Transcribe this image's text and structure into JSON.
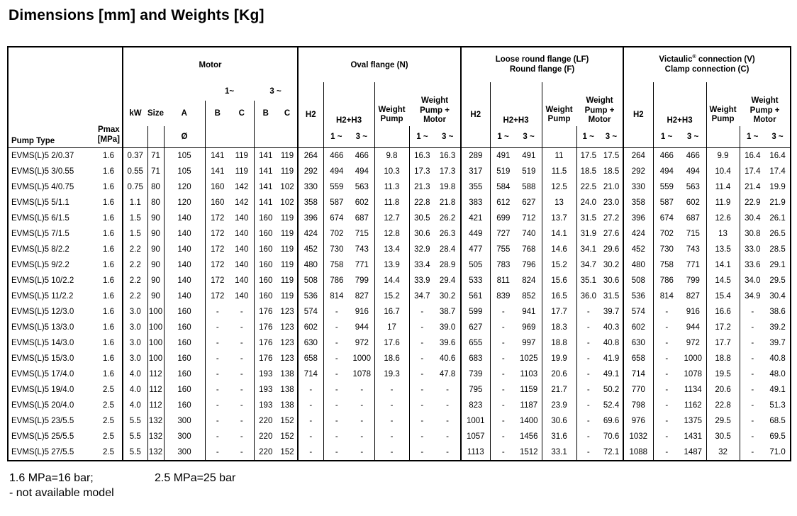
{
  "title": "Dimensions [mm] and Weights [Kg]",
  "table": {
    "header": {
      "pump_type": "Pump Type",
      "pmax_line1": "Pmax",
      "pmax_line2": "[MPa]",
      "motor": {
        "title": "Motor",
        "one": "1~",
        "three": "3 ~",
        "kw": "kW",
        "size": "Size",
        "a": "A",
        "b": "B",
        "c": "C",
        "diameter": "Ø"
      },
      "oval": {
        "title": "Oval flange (N)"
      },
      "lf": {
        "title1": "Loose round flange (LF)",
        "title2": "Round flange (F)"
      },
      "vc": {
        "brand": "Victaulic",
        "reg": "®",
        "rest": " connection (V)",
        "title2": "Clamp connection (C)"
      },
      "flange": {
        "h2": "H2",
        "h2h3": "H2+H3",
        "wp": "Weight\nPump",
        "wpm": "Weight\nPump +\nMotor",
        "one": "1 ~",
        "three": "3 ~"
      }
    },
    "rows": [
      {
        "pump": "EVMS(L)5 2/0.37",
        "pmax": "1.6",
        "motor": [
          "0.37",
          "71",
          "105",
          "141",
          "119",
          "141",
          "119"
        ],
        "oval": [
          "264",
          "466",
          "466",
          "9.8",
          "16.3",
          "16.3"
        ],
        "lf": [
          "289",
          "491",
          "491",
          "11",
          "17.5",
          "17.5"
        ],
        "vc": [
          "264",
          "466",
          "466",
          "9.9",
          "16.4",
          "16.4"
        ]
      },
      {
        "pump": "EVMS(L)5 3/0.55",
        "pmax": "1.6",
        "motor": [
          "0.55",
          "71",
          "105",
          "141",
          "119",
          "141",
          "119"
        ],
        "oval": [
          "292",
          "494",
          "494",
          "10.3",
          "17.3",
          "17.3"
        ],
        "lf": [
          "317",
          "519",
          "519",
          "11.5",
          "18.5",
          "18.5"
        ],
        "vc": [
          "292",
          "494",
          "494",
          "10.4",
          "17.4",
          "17.4"
        ]
      },
      {
        "pump": "EVMS(L)5 4/0.75",
        "pmax": "1.6",
        "motor": [
          "0.75",
          "80",
          "120",
          "160",
          "142",
          "141",
          "102"
        ],
        "oval": [
          "330",
          "559",
          "563",
          "11.3",
          "21.3",
          "19.8"
        ],
        "lf": [
          "355",
          "584",
          "588",
          "12.5",
          "22.5",
          "21.0"
        ],
        "vc": [
          "330",
          "559",
          "563",
          "11.4",
          "21.4",
          "19.9"
        ]
      },
      {
        "pump": "EVMS(L)5 5/1.1",
        "pmax": "1.6",
        "motor": [
          "1.1",
          "80",
          "120",
          "160",
          "142",
          "141",
          "102"
        ],
        "oval": [
          "358",
          "587",
          "602",
          "11.8",
          "22.8",
          "21.8"
        ],
        "lf": [
          "383",
          "612",
          "627",
          "13",
          "24.0",
          "23.0"
        ],
        "vc": [
          "358",
          "587",
          "602",
          "11.9",
          "22.9",
          "21.9"
        ]
      },
      {
        "pump": "EVMS(L)5 6/1.5",
        "pmax": "1.6",
        "motor": [
          "1.5",
          "90",
          "140",
          "172",
          "140",
          "160",
          "119"
        ],
        "oval": [
          "396",
          "674",
          "687",
          "12.7",
          "30.5",
          "26.2"
        ],
        "lf": [
          "421",
          "699",
          "712",
          "13.7",
          "31.5",
          "27.2"
        ],
        "vc": [
          "396",
          "674",
          "687",
          "12.6",
          "30.4",
          "26.1"
        ]
      },
      {
        "pump": "EVMS(L)5 7/1.5",
        "pmax": "1.6",
        "motor": [
          "1.5",
          "90",
          "140",
          "172",
          "140",
          "160",
          "119"
        ],
        "oval": [
          "424",
          "702",
          "715",
          "12.8",
          "30.6",
          "26.3"
        ],
        "lf": [
          "449",
          "727",
          "740",
          "14.1",
          "31.9",
          "27.6"
        ],
        "vc": [
          "424",
          "702",
          "715",
          "13",
          "30.8",
          "26.5"
        ]
      },
      {
        "pump": "EVMS(L)5 8/2.2",
        "pmax": "1.6",
        "motor": [
          "2.2",
          "90",
          "140",
          "172",
          "140",
          "160",
          "119"
        ],
        "oval": [
          "452",
          "730",
          "743",
          "13.4",
          "32.9",
          "28.4"
        ],
        "lf": [
          "477",
          "755",
          "768",
          "14.6",
          "34.1",
          "29.6"
        ],
        "vc": [
          "452",
          "730",
          "743",
          "13.5",
          "33.0",
          "28.5"
        ]
      },
      {
        "pump": "EVMS(L)5 9/2.2",
        "pmax": "1.6",
        "motor": [
          "2.2",
          "90",
          "140",
          "172",
          "140",
          "160",
          "119"
        ],
        "oval": [
          "480",
          "758",
          "771",
          "13.9",
          "33.4",
          "28.9"
        ],
        "lf": [
          "505",
          "783",
          "796",
          "15.2",
          "34.7",
          "30.2"
        ],
        "vc": [
          "480",
          "758",
          "771",
          "14.1",
          "33.6",
          "29.1"
        ]
      },
      {
        "pump": "EVMS(L)5 10/2.2",
        "pmax": "1.6",
        "motor": [
          "2.2",
          "90",
          "140",
          "172",
          "140",
          "160",
          "119"
        ],
        "oval": [
          "508",
          "786",
          "799",
          "14.4",
          "33.9",
          "29.4"
        ],
        "lf": [
          "533",
          "811",
          "824",
          "15.6",
          "35.1",
          "30.6"
        ],
        "vc": [
          "508",
          "786",
          "799",
          "14.5",
          "34.0",
          "29.5"
        ]
      },
      {
        "pump": "EVMS(L)5 11/2.2",
        "pmax": "1.6",
        "motor": [
          "2.2",
          "90",
          "140",
          "172",
          "140",
          "160",
          "119"
        ],
        "oval": [
          "536",
          "814",
          "827",
          "15.2",
          "34.7",
          "30.2"
        ],
        "lf": [
          "561",
          "839",
          "852",
          "16.5",
          "36.0",
          "31.5"
        ],
        "vc": [
          "536",
          "814",
          "827",
          "15.4",
          "34.9",
          "30.4"
        ]
      },
      {
        "pump": "EVMS(L)5 12/3.0",
        "pmax": "1.6",
        "motor": [
          "3.0",
          "100",
          "160",
          "-",
          "-",
          "176",
          "123"
        ],
        "oval": [
          "574",
          "-",
          "916",
          "16.7",
          "-",
          "38.7"
        ],
        "lf": [
          "599",
          "-",
          "941",
          "17.7",
          "-",
          "39.7"
        ],
        "vc": [
          "574",
          "-",
          "916",
          "16.6",
          "-",
          "38.6"
        ]
      },
      {
        "pump": "EVMS(L)5 13/3.0",
        "pmax": "1.6",
        "motor": [
          "3.0",
          "100",
          "160",
          "-",
          "-",
          "176",
          "123"
        ],
        "oval": [
          "602",
          "-",
          "944",
          "17",
          "-",
          "39.0"
        ],
        "lf": [
          "627",
          "-",
          "969",
          "18.3",
          "-",
          "40.3"
        ],
        "vc": [
          "602",
          "-",
          "944",
          "17.2",
          "-",
          "39.2"
        ]
      },
      {
        "pump": "EVMS(L)5 14/3.0",
        "pmax": "1.6",
        "motor": [
          "3.0",
          "100",
          "160",
          "-",
          "-",
          "176",
          "123"
        ],
        "oval": [
          "630",
          "-",
          "972",
          "17.6",
          "-",
          "39.6"
        ],
        "lf": [
          "655",
          "-",
          "997",
          "18.8",
          "-",
          "40.8"
        ],
        "vc": [
          "630",
          "-",
          "972",
          "17.7",
          "-",
          "39.7"
        ]
      },
      {
        "pump": "EVMS(L)5 15/3.0",
        "pmax": "1.6",
        "motor": [
          "3.0",
          "100",
          "160",
          "-",
          "-",
          "176",
          "123"
        ],
        "oval": [
          "658",
          "-",
          "1000",
          "18.6",
          "-",
          "40.6"
        ],
        "lf": [
          "683",
          "-",
          "1025",
          "19.9",
          "-",
          "41.9"
        ],
        "vc": [
          "658",
          "-",
          "1000",
          "18.8",
          "-",
          "40.8"
        ]
      },
      {
        "pump": "EVMS(L)5 17/4.0",
        "pmax": "1.6",
        "motor": [
          "4.0",
          "112",
          "160",
          "-",
          "-",
          "193",
          "138"
        ],
        "oval": [
          "714",
          "-",
          "1078",
          "19.3",
          "-",
          "47.8"
        ],
        "lf": [
          "739",
          "-",
          "1103",
          "20.6",
          "-",
          "49.1"
        ],
        "vc": [
          "714",
          "-",
          "1078",
          "19.5",
          "-",
          "48.0"
        ]
      },
      {
        "pump": "EVMS(L)5 19/4.0",
        "pmax": "2.5",
        "motor": [
          "4.0",
          "112",
          "160",
          "-",
          "-",
          "193",
          "138"
        ],
        "oval": [
          "-",
          "-",
          "-",
          "-",
          "-",
          "-"
        ],
        "lf": [
          "795",
          "-",
          "1159",
          "21.7",
          "-",
          "50.2"
        ],
        "vc": [
          "770",
          "-",
          "1134",
          "20.6",
          "-",
          "49.1"
        ]
      },
      {
        "pump": "EVMS(L)5 20/4.0",
        "pmax": "2.5",
        "motor": [
          "4.0",
          "112",
          "160",
          "-",
          "-",
          "193",
          "138"
        ],
        "oval": [
          "-",
          "-",
          "-",
          "-",
          "-",
          "-"
        ],
        "lf": [
          "823",
          "-",
          "1187",
          "23.9",
          "-",
          "52.4"
        ],
        "vc": [
          "798",
          "-",
          "1162",
          "22.8",
          "-",
          "51.3"
        ]
      },
      {
        "pump": "EVMS(L)5 23/5.5",
        "pmax": "2.5",
        "motor": [
          "5.5",
          "132",
          "300",
          "-",
          "-",
          "220",
          "152"
        ],
        "oval": [
          "-",
          "-",
          "-",
          "-",
          "-",
          "-"
        ],
        "lf": [
          "1001",
          "-",
          "1400",
          "30.6",
          "-",
          "69.6"
        ],
        "vc": [
          "976",
          "-",
          "1375",
          "29.5",
          "-",
          "68.5"
        ]
      },
      {
        "pump": "EVMS(L)5 25/5.5",
        "pmax": "2.5",
        "motor": [
          "5.5",
          "132",
          "300",
          "-",
          "-",
          "220",
          "152"
        ],
        "oval": [
          "-",
          "-",
          "-",
          "-",
          "-",
          "-"
        ],
        "lf": [
          "1057",
          "-",
          "1456",
          "31.6",
          "-",
          "70.6"
        ],
        "vc": [
          "1032",
          "-",
          "1431",
          "30.5",
          "-",
          "69.5"
        ]
      },
      {
        "pump": "EVMS(L)5 27/5.5",
        "pmax": "2.5",
        "motor": [
          "5.5",
          "132",
          "300",
          "-",
          "-",
          "220",
          "152"
        ],
        "oval": [
          "-",
          "-",
          "-",
          "-",
          "-",
          "-"
        ],
        "lf": [
          "1113",
          "-",
          "1512",
          "33.1",
          "-",
          "72.1"
        ],
        "vc": [
          "1088",
          "-",
          "1487",
          "32",
          "-",
          "71.0"
        ]
      }
    ]
  },
  "footer": {
    "note1a": "1.6 MPa=16 bar;",
    "note1b": "2.5 MPa=25 bar",
    "note2": "- not available model"
  }
}
